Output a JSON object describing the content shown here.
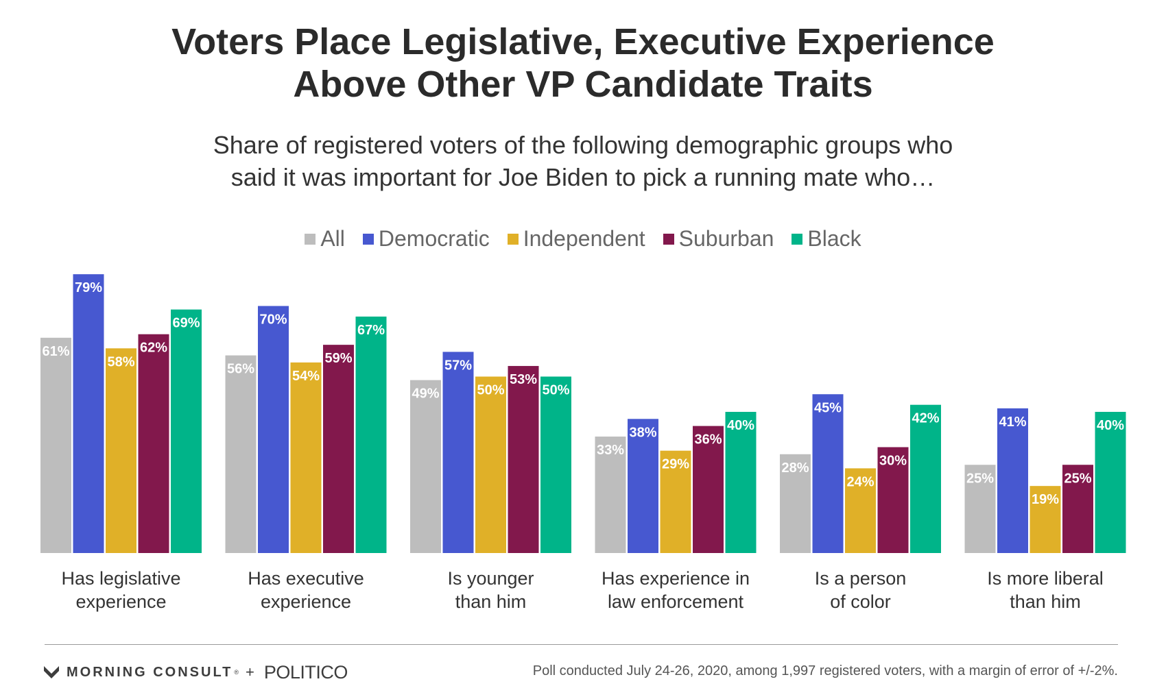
{
  "header": {
    "title_line1": "Voters Place Legislative, Executive Experience",
    "title_line2": "Above Other VP Candidate Traits",
    "subtitle_line1": "Share of registered voters of the following demographic groups who",
    "subtitle_line2": "said it was important for Joe Biden to pick a running mate who…"
  },
  "legend": [
    {
      "label": "All",
      "color": "#bdbdbd"
    },
    {
      "label": "Democratic",
      "color": "#4758d0"
    },
    {
      "label": "Independent",
      "color": "#e0b028"
    },
    {
      "label": "Suburban",
      "color": "#82184c"
    },
    {
      "label": "Black",
      "color": "#00b489"
    }
  ],
  "chart_data": {
    "type": "bar",
    "title": "Voters Place Legislative, Executive Experience Above Other VP Candidate Traits",
    "subtitle": "Share of registered voters of the following demographic groups who said it was important for Joe Biden to pick a running mate who…",
    "categories": [
      [
        "Has legislative",
        "experience"
      ],
      [
        "Has executive",
        "experience"
      ],
      [
        "Is younger",
        "than him"
      ],
      [
        "Has experience in",
        "law enforcement"
      ],
      [
        "Is a person",
        "of color"
      ],
      [
        "Is more liberal",
        "than him"
      ]
    ],
    "series": [
      {
        "name": "All",
        "color": "#bdbdbd",
        "values": [
          61,
          56,
          49,
          33,
          28,
          25
        ]
      },
      {
        "name": "Democratic",
        "color": "#4758d0",
        "values": [
          79,
          70,
          57,
          38,
          45,
          41
        ]
      },
      {
        "name": "Independent",
        "color": "#e0b028",
        "values": [
          58,
          54,
          50,
          29,
          24,
          19
        ]
      },
      {
        "name": "Suburban",
        "color": "#82184c",
        "values": [
          62,
          59,
          53,
          36,
          30,
          25
        ]
      },
      {
        "name": "Black",
        "color": "#00b489",
        "values": [
          69,
          67,
          50,
          40,
          42,
          40
        ]
      }
    ],
    "value_suffix": "%",
    "ylim": [
      0,
      100
    ],
    "grid": false,
    "legend_position": "top-center"
  },
  "footer": {
    "brand_left": "MORNING CONSULT",
    "brand_tm": "®",
    "brand_plus": "+",
    "brand_right": "POLITICO",
    "source": "Poll conducted July 24-26, 2020, among 1,997 registered voters, with a margin of error of +/-2%."
  }
}
